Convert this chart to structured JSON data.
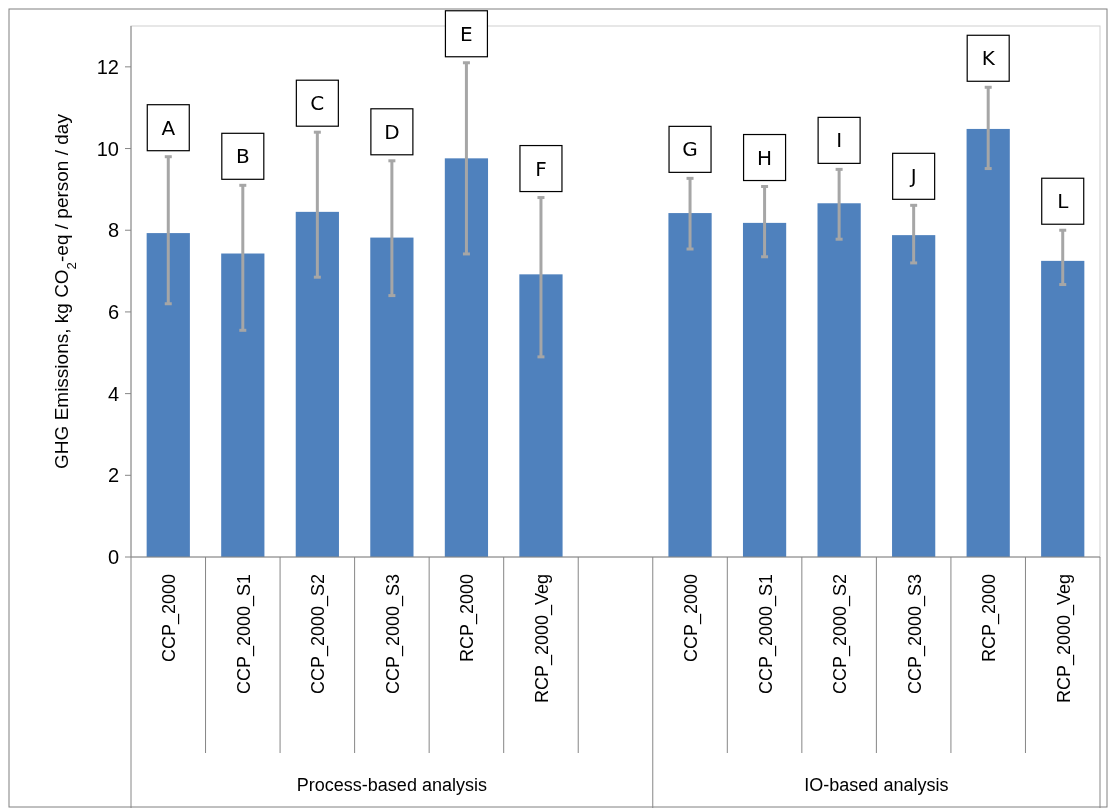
{
  "chart_data": {
    "type": "bar",
    "ylabel": "GHG Emissions, kg CO$_{2}$-eq / person / day",
    "categories": [
      "CCP_2000",
      "CCP_2000_S1",
      "CCP_2000_S2",
      "CCP_2000_S3",
      "RCP_2000",
      "RCP_2000_Veg",
      null,
      "CCP_2000",
      "CCP_2000_S1",
      "CCP_2000_S2",
      "CCP_2000_S3",
      "RCP_2000",
      "RCP_2000_Veg"
    ],
    "values": [
      7.93,
      7.43,
      8.45,
      7.82,
      9.76,
      6.92,
      null,
      8.42,
      8.18,
      8.66,
      7.88,
      10.48,
      7.25
    ],
    "errors": [
      [
        6.2,
        9.8
      ],
      [
        5.55,
        9.1
      ],
      [
        6.85,
        10.4
      ],
      [
        6.4,
        9.7
      ],
      [
        7.42,
        12.1
      ],
      [
        4.9,
        8.8
      ],
      null,
      [
        7.54,
        9.27
      ],
      [
        7.35,
        9.07
      ],
      [
        7.78,
        9.49
      ],
      [
        7.2,
        8.61
      ],
      [
        9.51,
        11.5
      ],
      [
        6.67,
        8.0
      ]
    ],
    "color": "#4f81bd",
    "ylim": [
      0,
      13
    ],
    "yticks": [
      0,
      2,
      4,
      6,
      8,
      10,
      12
    ],
    "grid": false,
    "annotations": [
      "Process-based analysis",
      "IO-based analysis",
      "A",
      "B",
      "C",
      "D",
      "E",
      "F",
      "G",
      "H",
      "I",
      "J",
      "K",
      "L"
    ]
  }
}
